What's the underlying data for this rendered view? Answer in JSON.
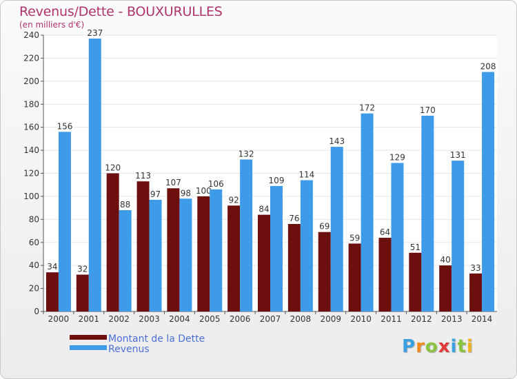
{
  "chart_data": {
    "type": "bar",
    "title": "Revenus/Dette - BOUXURULLES",
    "subtitle": "(en milliers d'€)",
    "categories": [
      "2000",
      "2001",
      "2002",
      "2003",
      "2004",
      "2005",
      "2006",
      "2007",
      "2008",
      "2009",
      "2010",
      "2011",
      "2012",
      "2013",
      "2014"
    ],
    "series": [
      {
        "name": "Montant de la Dette",
        "color": "#6e0f0f",
        "values": [
          34,
          32,
          120,
          113,
          107,
          100,
          92,
          84,
          76,
          69,
          59,
          64,
          51,
          40,
          33
        ]
      },
      {
        "name": "Revenus",
        "color": "#3d9be9",
        "values": [
          156,
          237,
          88,
          97,
          98,
          106,
          132,
          109,
          114,
          143,
          172,
          129,
          170,
          131,
          208
        ]
      }
    ],
    "ylim": [
      0,
      240
    ],
    "yticks": [
      0,
      20,
      40,
      60,
      80,
      100,
      120,
      140,
      160,
      180,
      200,
      220,
      240
    ],
    "grid": true,
    "legend_position": "bottom-left",
    "show_value_labels": true
  },
  "logo": {
    "letters": [
      "P",
      "r",
      "o",
      "x",
      "i",
      "t",
      "i"
    ],
    "colors": [
      "#3aa0e0",
      "#f28c1e",
      "#8bc53f",
      "#e53935",
      "#3aa0e0",
      "#8bc53f",
      "#f2b21e"
    ]
  }
}
